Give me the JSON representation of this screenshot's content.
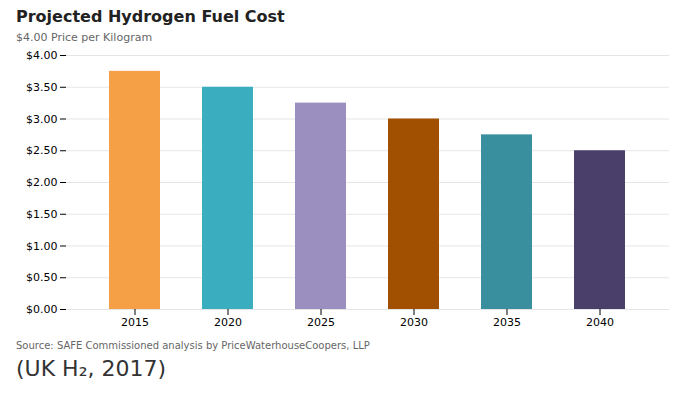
{
  "chart_data": {
    "type": "bar",
    "title": "Projected Hydrogen Fuel Cost",
    "ylabel": "$4.00   Price per Kilogram",
    "categories": [
      "2015",
      "2020",
      "2025",
      "2030",
      "2035",
      "2040"
    ],
    "values": [
      3.75,
      3.5,
      3.25,
      3.0,
      2.75,
      2.5
    ],
    "colors": [
      "#F5A047",
      "#3AADBE",
      "#9B8FBF",
      "#A05000",
      "#3A8F9F",
      "#4A3F6B"
    ],
    "ylim": [
      0,
      4.0
    ],
    "yticks": [
      {
        "value": 0.0,
        "label": "$0.00"
      },
      {
        "value": 0.5,
        "label": "$0.50"
      },
      {
        "value": 1.0,
        "label": "$1.00"
      },
      {
        "value": 1.5,
        "label": "$1.50"
      },
      {
        "value": 2.0,
        "label": "$2.00"
      },
      {
        "value": 2.5,
        "label": "$2.50"
      },
      {
        "value": 3.0,
        "label": "$3.00"
      },
      {
        "value": 3.5,
        "label": "$3.50"
      },
      {
        "value": 4.0,
        "label": "$4.00"
      }
    ],
    "grid": true,
    "annotations": [
      "Source: SAFE Commissioned analysis by PriceWaterhouseCoopers, LLP",
      "(UK H₂, 2017)"
    ]
  }
}
